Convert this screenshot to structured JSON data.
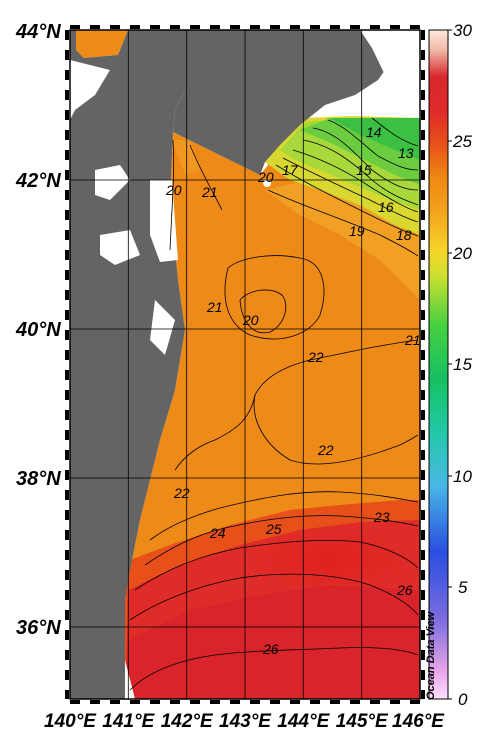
{
  "map": {
    "lat_labels": [
      "44°N",
      "42°N",
      "40°N",
      "38°N",
      "36°N"
    ],
    "lon_labels": [
      "140°E",
      "141°E",
      "142°E",
      "143°E",
      "144°E",
      "145°E",
      "146°E"
    ],
    "land_color": "#646464"
  },
  "colorbar": {
    "ticks": [
      "30",
      "25",
      "20",
      "15",
      "10",
      "5",
      "0"
    ],
    "range": [
      0,
      30
    ],
    "watermark": "Ocean Data View"
  },
  "contour_labels": [
    "20",
    "21",
    "13",
    "14",
    "15",
    "17",
    "20",
    "16",
    "19",
    "18",
    "21",
    "20",
    "22",
    "21",
    "22",
    "22",
    "23",
    "24",
    "25",
    "26",
    "26"
  ]
}
